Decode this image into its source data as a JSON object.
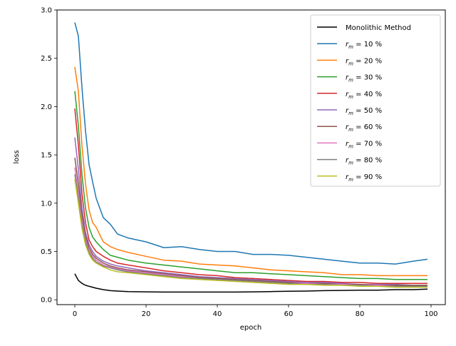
{
  "chart_data": {
    "type": "line",
    "xlabel": "epoch",
    "ylabel": "loss",
    "xlim": [
      -5,
      104
    ],
    "ylim": [
      -0.05,
      3.0
    ],
    "x_ticks": [
      0,
      20,
      40,
      60,
      80,
      100
    ],
    "x_tick_labels": [
      "0",
      "20",
      "40",
      "60",
      "80",
      "100"
    ],
    "y_ticks": [
      0.0,
      0.5,
      1.0,
      1.5,
      2.0,
      2.5,
      3.0
    ],
    "y_tick_labels": [
      "0.0",
      "0.5",
      "1.0",
      "1.5",
      "2.0",
      "2.5",
      "3.0"
    ],
    "legend_position": "top-right",
    "x_points": [
      0,
      1,
      2,
      3,
      4,
      5,
      6,
      8,
      10,
      12,
      15,
      20,
      25,
      30,
      35,
      40,
      45,
      50,
      55,
      60,
      65,
      70,
      75,
      80,
      85,
      90,
      95,
      99
    ],
    "series": [
      {
        "name": "Monolithic Method",
        "color": "#000000",
        "legend_parts": [
          "Monolithic Method"
        ],
        "values": [
          0.27,
          0.2,
          0.17,
          0.15,
          0.14,
          0.13,
          0.12,
          0.105,
          0.095,
          0.09,
          0.085,
          0.082,
          0.08,
          0.08,
          0.08,
          0.08,
          0.08,
          0.082,
          0.085,
          0.088,
          0.09,
          0.095,
          0.097,
          0.1,
          0.1,
          0.105,
          0.105,
          0.11
        ]
      },
      {
        "name": "r_m = 10 %",
        "color": "#1f77b4",
        "legend_parts": [
          "r",
          "m",
          " = 10 %"
        ],
        "values": [
          2.87,
          2.73,
          2.2,
          1.75,
          1.4,
          1.22,
          1.05,
          0.85,
          0.78,
          0.68,
          0.64,
          0.6,
          0.54,
          0.55,
          0.52,
          0.5,
          0.5,
          0.47,
          0.47,
          0.46,
          0.44,
          0.42,
          0.4,
          0.38,
          0.38,
          0.37,
          0.4,
          0.42
        ]
      },
      {
        "name": "r_m = 20 %",
        "color": "#ff7f0e",
        "legend_parts": [
          "r",
          "m",
          " = 20 %"
        ],
        "values": [
          2.41,
          2.16,
          1.6,
          1.2,
          0.93,
          0.8,
          0.75,
          0.6,
          0.55,
          0.52,
          0.49,
          0.45,
          0.41,
          0.4,
          0.37,
          0.36,
          0.35,
          0.33,
          0.31,
          0.3,
          0.29,
          0.28,
          0.26,
          0.26,
          0.25,
          0.25,
          0.25,
          0.25
        ]
      },
      {
        "name": "r_m = 30 %",
        "color": "#2ca02c",
        "legend_parts": [
          "r",
          "m",
          " = 30 %"
        ],
        "values": [
          2.16,
          1.8,
          1.3,
          0.95,
          0.75,
          0.65,
          0.6,
          0.52,
          0.46,
          0.44,
          0.41,
          0.38,
          0.36,
          0.34,
          0.32,
          0.3,
          0.28,
          0.28,
          0.27,
          0.26,
          0.25,
          0.24,
          0.23,
          0.22,
          0.22,
          0.21,
          0.21,
          0.21
        ]
      },
      {
        "name": "r_m = 40 %",
        "color": "#d62728",
        "legend_parts": [
          "r",
          "m",
          " = 40 %"
        ],
        "values": [
          1.98,
          1.6,
          1.1,
          0.8,
          0.62,
          0.55,
          0.5,
          0.45,
          0.41,
          0.38,
          0.36,
          0.33,
          0.3,
          0.28,
          0.26,
          0.25,
          0.23,
          0.22,
          0.21,
          0.2,
          0.19,
          0.19,
          0.18,
          0.18,
          0.17,
          0.17,
          0.17,
          0.17
        ]
      },
      {
        "name": "r_m = 50 %",
        "color": "#9467bd",
        "legend_parts": [
          "r",
          "m",
          " = 50 %"
        ],
        "values": [
          1.68,
          1.35,
          0.95,
          0.7,
          0.57,
          0.5,
          0.45,
          0.4,
          0.37,
          0.35,
          0.33,
          0.3,
          0.28,
          0.26,
          0.24,
          0.23,
          0.22,
          0.21,
          0.2,
          0.19,
          0.18,
          0.18,
          0.17,
          0.16,
          0.16,
          0.16,
          0.15,
          0.15
        ]
      },
      {
        "name": "r_m = 60 %",
        "color": "#8c564b",
        "legend_parts": [
          "r",
          "m",
          " = 60 %"
        ],
        "values": [
          1.47,
          1.2,
          0.88,
          0.66,
          0.54,
          0.47,
          0.43,
          0.38,
          0.35,
          0.33,
          0.31,
          0.29,
          0.27,
          0.25,
          0.23,
          0.22,
          0.21,
          0.2,
          0.19,
          0.18,
          0.17,
          0.17,
          0.16,
          0.16,
          0.15,
          0.15,
          0.15,
          0.15
        ]
      },
      {
        "name": "r_m = 70 %",
        "color": "#e377c2",
        "legend_parts": [
          "r",
          "m",
          " = 70 %"
        ],
        "values": [
          1.37,
          1.1,
          0.82,
          0.62,
          0.51,
          0.45,
          0.41,
          0.36,
          0.34,
          0.32,
          0.3,
          0.28,
          0.26,
          0.24,
          0.22,
          0.21,
          0.2,
          0.19,
          0.18,
          0.17,
          0.17,
          0.16,
          0.16,
          0.15,
          0.15,
          0.14,
          0.14,
          0.14
        ]
      },
      {
        "name": "r_m = 80 %",
        "color": "#7f7f7f",
        "legend_parts": [
          "r",
          "m",
          " = 80 %"
        ],
        "values": [
          1.3,
          1.05,
          0.78,
          0.6,
          0.49,
          0.43,
          0.39,
          0.35,
          0.33,
          0.31,
          0.29,
          0.27,
          0.25,
          0.23,
          0.22,
          0.21,
          0.2,
          0.19,
          0.18,
          0.17,
          0.16,
          0.16,
          0.15,
          0.15,
          0.14,
          0.14,
          0.14,
          0.14
        ]
      },
      {
        "name": "r_m = 90 %",
        "color": "#bcbd22",
        "legend_parts": [
          "r",
          "m",
          " = 90 %"
        ],
        "values": [
          1.25,
          1.0,
          0.74,
          0.57,
          0.47,
          0.41,
          0.38,
          0.34,
          0.31,
          0.29,
          0.28,
          0.26,
          0.24,
          0.22,
          0.21,
          0.2,
          0.19,
          0.18,
          0.17,
          0.16,
          0.16,
          0.15,
          0.15,
          0.14,
          0.14,
          0.13,
          0.13,
          0.13
        ]
      }
    ]
  }
}
